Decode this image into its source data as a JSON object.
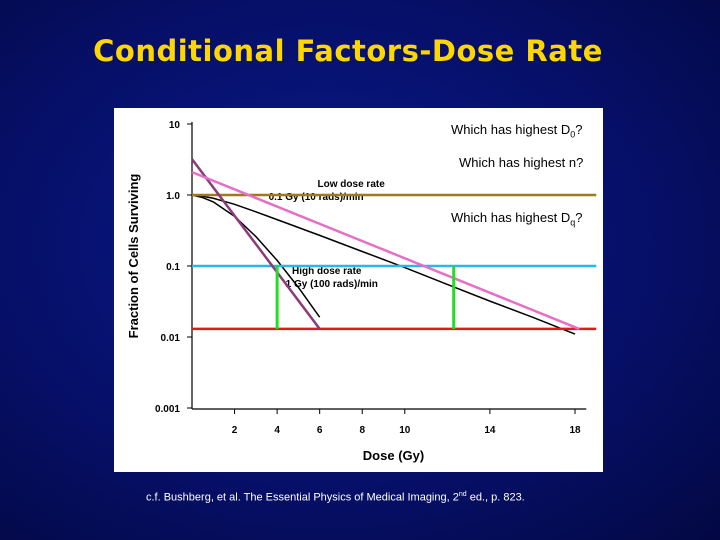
{
  "slide": {
    "title": "Conditional Factors-Dose Rate",
    "citation_before": "c.f. Bushberg, et al. The Essential Physics of Medical Imaging, 2",
    "citation_sup": "nd",
    "citation_after": " ed., p. 823."
  },
  "questions": {
    "q1_main": "Which has highest D",
    "q1_sub": "0",
    "q1_end": "?",
    "q2": "Which has highest n?",
    "q3_main": "Which has highest D",
    "q3_sub": "q",
    "q3_end": "?"
  },
  "colors": {
    "background": "#06106a",
    "title": "#ffd700",
    "brown_line": "#a0781e",
    "cyan_line": "#29b6e8",
    "red_line": "#e01a1a",
    "green_marker": "#22dd22",
    "purple_line": "#8b3a7a",
    "pink_line": "#e56fc8",
    "curve": "#000000"
  },
  "chart_data": {
    "type": "line",
    "xlabel": "Dose (Gy)",
    "ylabel": "Fraction of Cells Surviving",
    "y_scale": "log",
    "x_ticks": [
      2,
      4,
      6,
      8,
      10,
      14,
      18
    ],
    "y_ticks": [
      {
        "value": 10,
        "label": "10"
      },
      {
        "value": 1.0,
        "label": "1.0"
      },
      {
        "value": 0.1,
        "label": "0.1"
      },
      {
        "value": 0.01,
        "label": "0.01"
      },
      {
        "value": 0.001,
        "label": "0.001"
      }
    ],
    "xlim": [
      0,
      19
    ],
    "ylim": [
      0.001,
      10
    ],
    "annotations": {
      "low_line1": "Low dose rate",
      "low_line2": "0.1 Gy (10 rads)/min",
      "high_line1": "High dose rate",
      "high_line2": "1 Gy (100 rads)/min"
    },
    "series": [
      {
        "name": "Low dose rate",
        "x": [
          0,
          0.5,
          1,
          2,
          3,
          4,
          6,
          8,
          10,
          12,
          14,
          16,
          18
        ],
        "y": [
          1.0,
          0.96,
          0.9,
          0.74,
          0.58,
          0.45,
          0.27,
          0.16,
          0.095,
          0.055,
          0.032,
          0.019,
          0.011
        ]
      },
      {
        "name": "High dose rate",
        "x": [
          0,
          0.5,
          1,
          2,
          3,
          4,
          5,
          6
        ],
        "y": [
          1.0,
          0.92,
          0.8,
          0.5,
          0.26,
          0.12,
          0.05,
          0.019
        ]
      }
    ],
    "overlay_lines": [
      {
        "name": "brown-reference",
        "x": [
          0,
          19
        ],
        "y": [
          1.0,
          1.0
        ]
      },
      {
        "name": "cyan-reference",
        "x": [
          0,
          19
        ],
        "y": [
          0.1,
          0.1
        ]
      },
      {
        "name": "red-reference",
        "x": [
          0,
          19
        ],
        "y": [
          0.013,
          0.013
        ]
      },
      {
        "name": "purple-extrapolation",
        "x": [
          0,
          6
        ],
        "y": [
          3.2,
          0.013
        ]
      },
      {
        "name": "pink-extrapolation",
        "x": [
          0,
          18.2
        ],
        "y": [
          2.1,
          0.013
        ]
      }
    ],
    "markers": [
      {
        "name": "green-marker-high",
        "x": 4,
        "y": [
          0.1,
          0.013
        ]
      },
      {
        "name": "green-marker-low",
        "x": 12.3,
        "y": [
          0.1,
          0.013
        ]
      }
    ]
  }
}
